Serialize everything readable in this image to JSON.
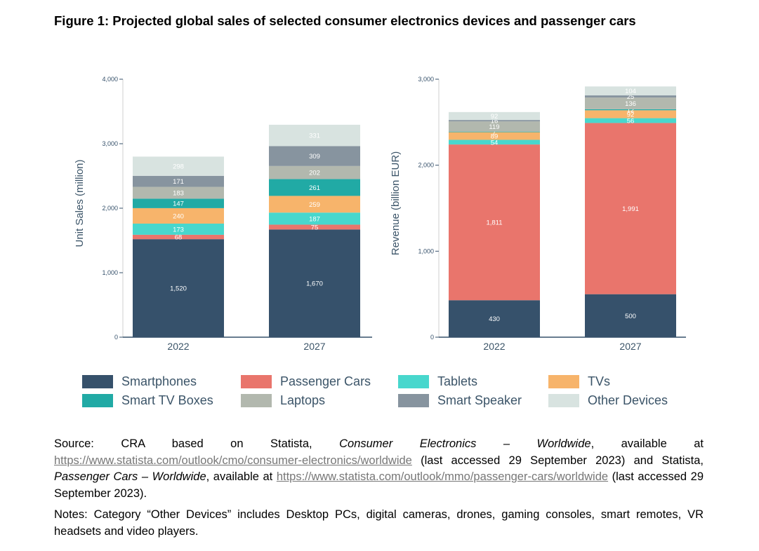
{
  "figure": {
    "title": "Figure 1: Projected global sales of selected consumer electronics devices and passenger cars"
  },
  "colors": {
    "Smartphones": "#36516b",
    "Passenger Cars": "#e9756c",
    "Tablets": "#48d7cd",
    "TVs": "#f7b46b",
    "Smart TV Boxes": "#21aaa5",
    "Laptops": "#b2b8ae",
    "Smart Speaker": "#87949f",
    "Other Devices": "#d8e3e0"
  },
  "legend": [
    {
      "label": "Smartphones",
      "key": "Smartphones"
    },
    {
      "label": "Passenger Cars",
      "key": "Passenger Cars"
    },
    {
      "label": "Tablets",
      "key": "Tablets"
    },
    {
      "label": "TVs",
      "key": "TVs"
    },
    {
      "label": "Smart TV Boxes",
      "key": "Smart TV Boxes"
    },
    {
      "label": "Laptops",
      "key": "Laptops"
    },
    {
      "label": "Smart Speaker",
      "key": "Smart Speaker"
    },
    {
      "label": "Other Devices",
      "key": "Other Devices"
    }
  ],
  "chart_data": [
    {
      "type": "bar",
      "stacked": true,
      "title": "",
      "xlabel": "",
      "ylabel": "Unit Sales (million)",
      "ylim": [
        0,
        4000
      ],
      "yticks": [
        0,
        1000,
        2000,
        3000,
        4000
      ],
      "ytick_labels": [
        "0",
        "1,000",
        "2,000",
        "3,000",
        "4,000"
      ],
      "categories": [
        "2022",
        "2027"
      ],
      "series": [
        {
          "name": "Smartphones",
          "values": [
            1520,
            1670
          ],
          "labels": [
            "1,520",
            "1,670"
          ]
        },
        {
          "name": "Passenger Cars",
          "values": [
            68,
            75
          ],
          "labels": [
            "68",
            "75"
          ]
        },
        {
          "name": "Tablets",
          "values": [
            173,
            187
          ],
          "labels": [
            "173",
            "187"
          ]
        },
        {
          "name": "TVs",
          "values": [
            240,
            259
          ],
          "labels": [
            "240",
            "259"
          ]
        },
        {
          "name": "Smart TV Boxes",
          "values": [
            147,
            261
          ],
          "labels": [
            "147",
            "261"
          ]
        },
        {
          "name": "Laptops",
          "values": [
            183,
            202
          ],
          "labels": [
            "183",
            "202"
          ]
        },
        {
          "name": "Smart Speaker",
          "values": [
            171,
            309
          ],
          "labels": [
            "171",
            "309"
          ]
        },
        {
          "name": "Other Devices",
          "values": [
            298,
            331
          ],
          "labels": [
            "298",
            "331"
          ]
        }
      ]
    },
    {
      "type": "bar",
      "stacked": true,
      "title": "",
      "xlabel": "",
      "ylabel": "Revenue (billion EUR)",
      "ylim": [
        0,
        3000
      ],
      "yticks": [
        0,
        1000,
        2000,
        3000
      ],
      "ytick_labels": [
        "0",
        "1,000",
        "2,000",
        "3,000"
      ],
      "categories": [
        "2022",
        "2027"
      ],
      "series": [
        {
          "name": "Smartphones",
          "values": [
            430,
            500
          ],
          "labels": [
            "430",
            "500"
          ]
        },
        {
          "name": "Passenger Cars",
          "values": [
            1811,
            1991
          ],
          "labels": [
            "1,811",
            "1,991"
          ]
        },
        {
          "name": "Tablets",
          "values": [
            54,
            56
          ],
          "labels": [
            "54",
            "56"
          ]
        },
        {
          "name": "TVs",
          "values": [
            89,
            92
          ],
          "labels": [
            "89",
            "92"
          ]
        },
        {
          "name": "Smart TV Boxes",
          "values": [
            7,
            12
          ],
          "labels": [
            "7",
            "12"
          ]
        },
        {
          "name": "Laptops",
          "values": [
            119,
            136
          ],
          "labels": [
            "119",
            "136"
          ]
        },
        {
          "name": "Smart Speaker",
          "values": [
            16,
            25
          ],
          "labels": [
            "16",
            "25"
          ]
        },
        {
          "name": "Other Devices",
          "values": [
            92,
            104
          ],
          "labels": [
            "92",
            "104"
          ]
        }
      ]
    }
  ],
  "source": {
    "prefix": "Source: CRA based on Statista, ",
    "title1": "Consumer Electronics – Worldwide",
    "mid1": ", available at ",
    "link1": "https://www.statista.com/outlook/cmo/consumer-electronics/worldwide",
    "mid2": " (last accessed 29 September 2023) and Statista, ",
    "title2": "Passenger Cars – Worldwide",
    "mid3": ", available at ",
    "link2": "https://www.statista.com/outlook/mmo/passenger-cars/worldwide",
    "suffix": " (last accessed 29 September 2023)."
  },
  "notes": "Notes: Category “Other Devices” includes Desktop PCs, digital cameras, drones, gaming consoles, smart remotes, VR headsets and video players."
}
